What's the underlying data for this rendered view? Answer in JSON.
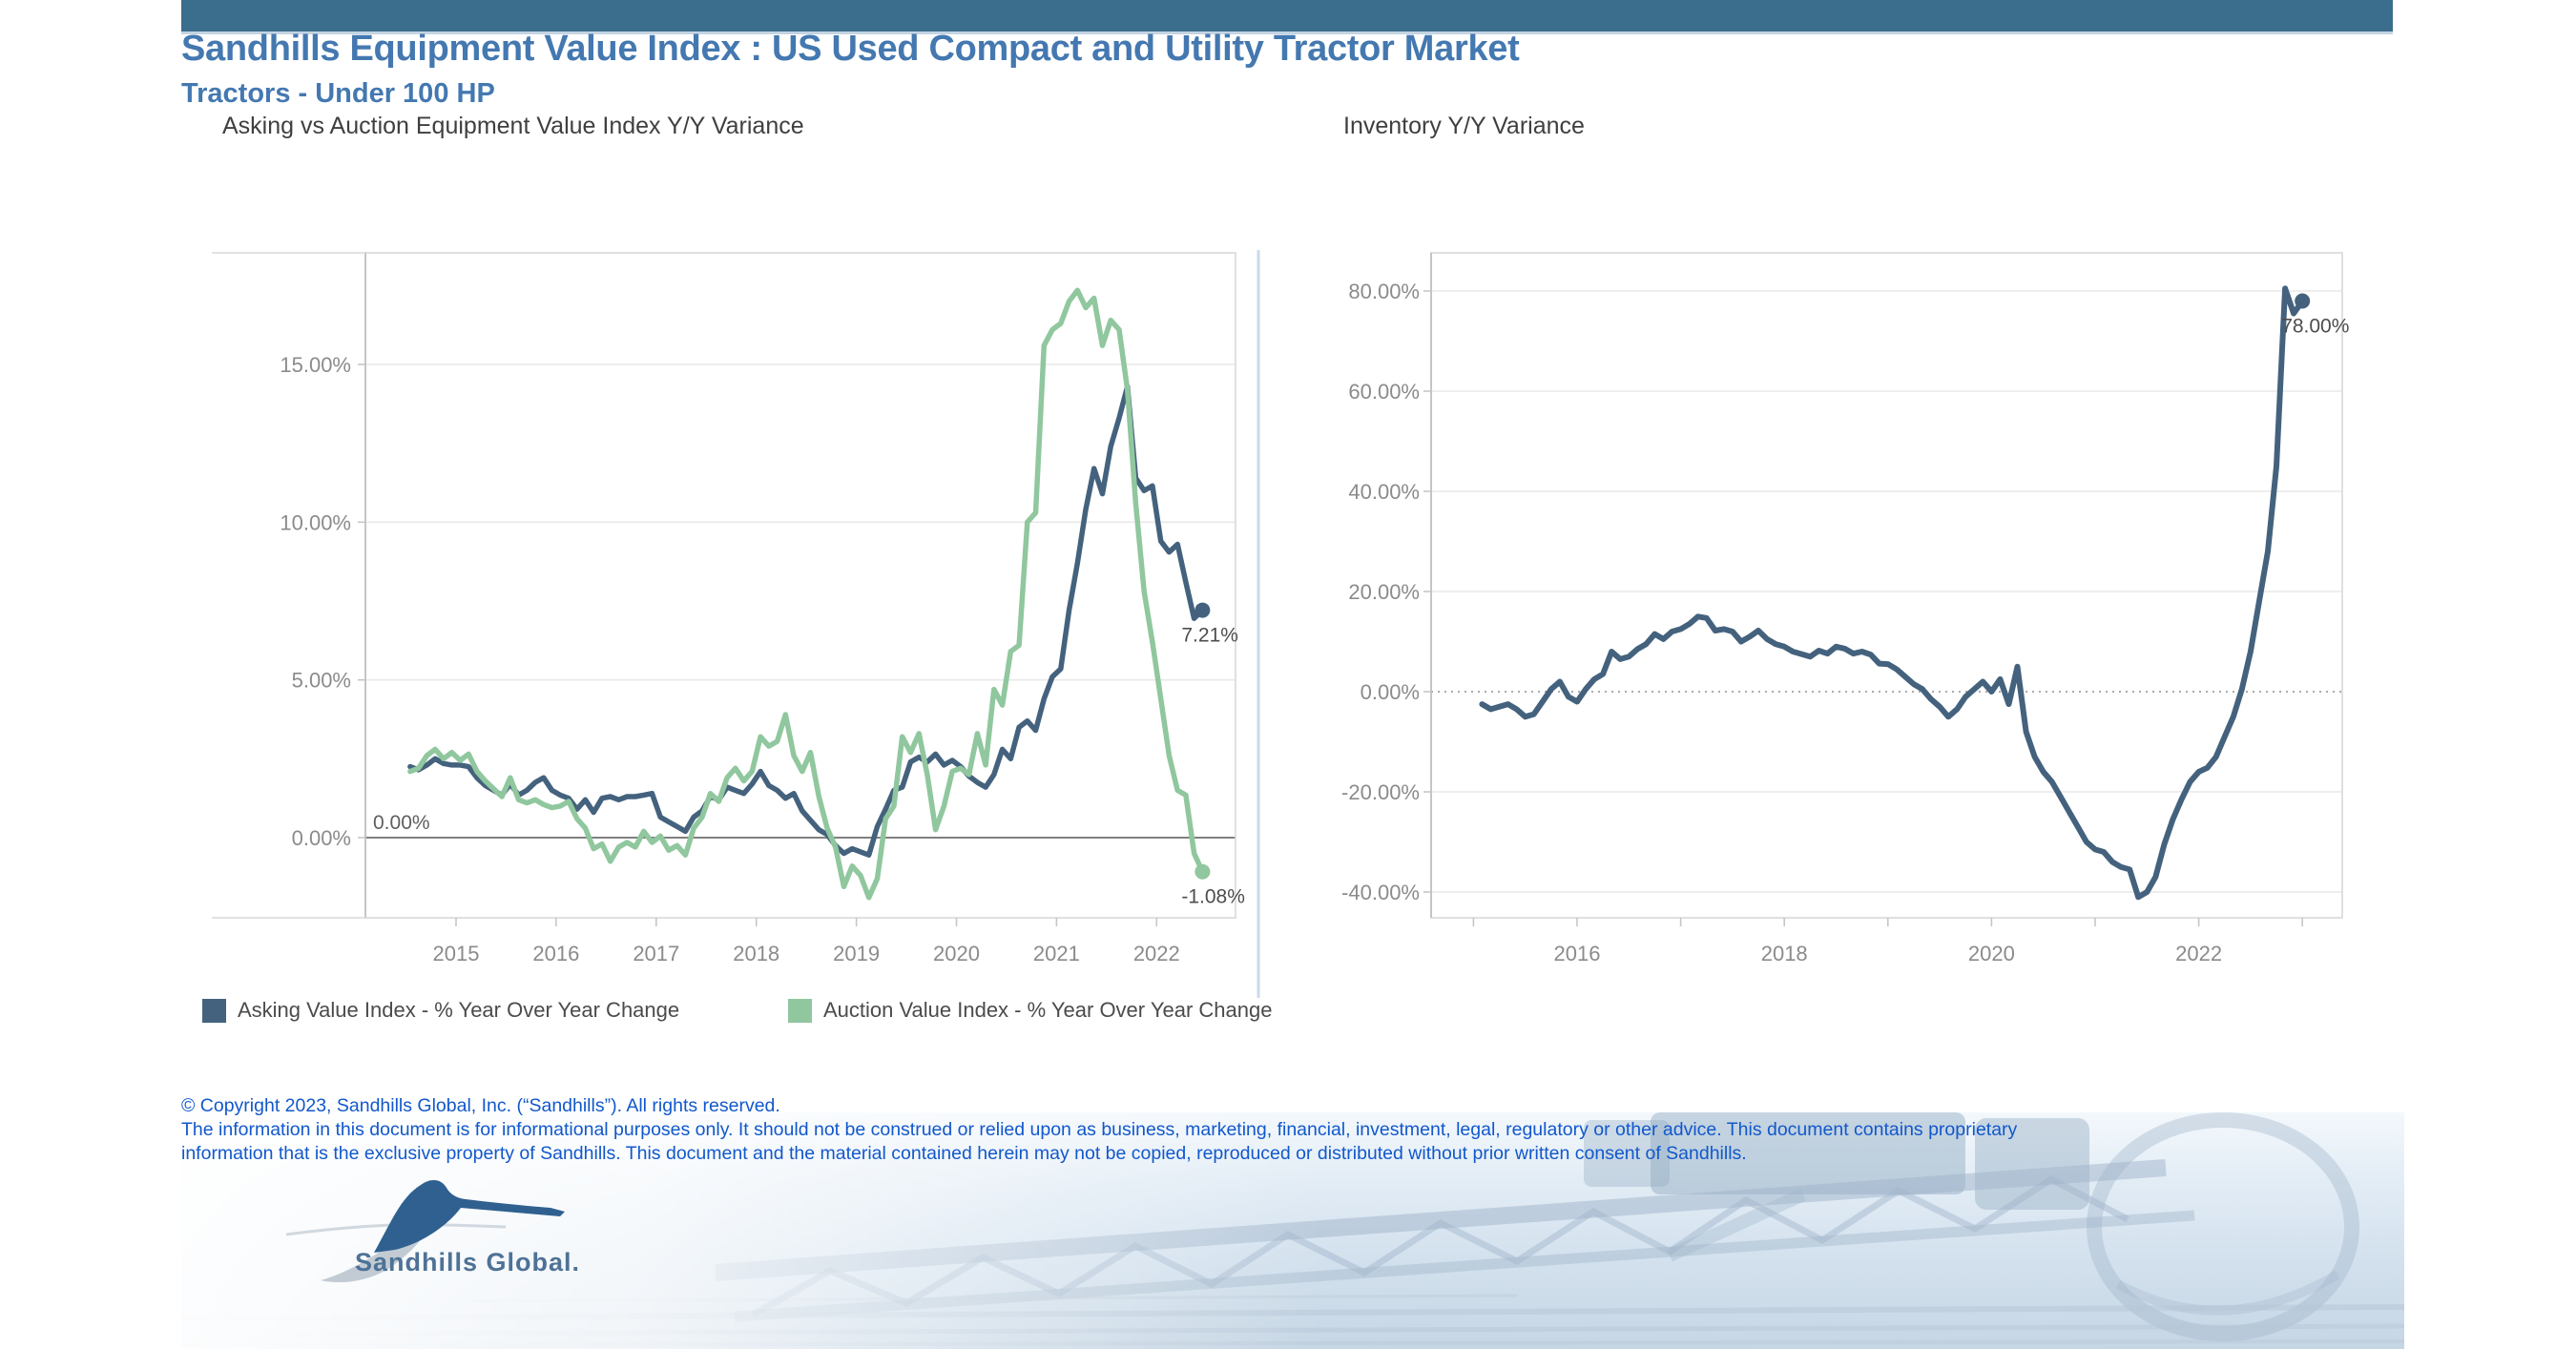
{
  "header": {
    "title": "Sandhills Equipment Value Index : US Used Compact and Utility Tractor Market",
    "subtitle": "Tractors - Under 100 HP"
  },
  "chart_data": [
    {
      "type": "line",
      "title": "Asking vs Auction Equipment Value Index Y/Y Variance",
      "x_start_year": 2014.5417,
      "x_step_years": 0.0833333,
      "x_ticks": [
        {
          "year": 2015,
          "label": "2015"
        },
        {
          "year": 2016,
          "label": "2016"
        },
        {
          "year": 2017,
          "label": "2017"
        },
        {
          "year": 2018,
          "label": "2018"
        },
        {
          "year": 2019,
          "label": "2019"
        },
        {
          "year": 2020,
          "label": "2020"
        },
        {
          "year": 2021,
          "label": "2021"
        },
        {
          "year": 2022,
          "label": "2022"
        }
      ],
      "y_ticks": [
        {
          "value": 15,
          "label": "15.00%"
        },
        {
          "value": 10,
          "label": "10.00%"
        },
        {
          "value": 5,
          "label": "5.00%"
        },
        {
          "value": 0,
          "label": "0.00%"
        }
      ],
      "ylim": [
        -2.6,
        18.5
      ],
      "grid": "horizontal-only",
      "zero_reference_line": {
        "value": 0,
        "style": "solid",
        "label": "0.00%"
      },
      "legend_position": "bottom-left",
      "series": [
        {
          "name": "Asking Value Index - % Year Over Year Change",
          "color": "#44627D",
          "end_label": "7.21%",
          "end_dot": true,
          "values": [
            2.25,
            2.15,
            2.3,
            2.5,
            2.35,
            2.3,
            2.3,
            2.25,
            1.9,
            1.65,
            1.5,
            1.35,
            1.7,
            1.35,
            1.5,
            1.75,
            1.9,
            1.5,
            1.35,
            1.25,
            0.9,
            1.2,
            0.8,
            1.25,
            1.3,
            1.2,
            1.3,
            1.3,
            1.35,
            1.4,
            0.65,
            0.5,
            0.35,
            0.2,
            0.65,
            0.85,
            1.3,
            1.2,
            1.6,
            1.5,
            1.4,
            1.7,
            2.1,
            1.65,
            1.5,
            1.25,
            1.4,
            0.85,
            0.55,
            0.25,
            0.1,
            -0.25,
            -0.5,
            -0.35,
            -0.45,
            -0.55,
            0.35,
            0.9,
            1.5,
            1.6,
            2.4,
            2.55,
            2.4,
            2.65,
            2.3,
            2.45,
            2.25,
            1.95,
            1.75,
            1.6,
            2.0,
            2.8,
            2.5,
            3.5,
            3.7,
            3.4,
            4.4,
            5.1,
            5.35,
            7.2,
            8.7,
            10.4,
            11.7,
            10.9,
            12.4,
            13.3,
            14.3,
            11.4,
            11.0,
            11.15,
            9.4,
            9.05,
            9.3,
            8.1,
            6.95,
            7.21
          ]
        },
        {
          "name": "Auction Value Index - % Year Over Year Change",
          "color": "#90C79E",
          "end_label": "-1.08%",
          "end_dot": true,
          "values": [
            2.1,
            2.2,
            2.6,
            2.8,
            2.5,
            2.7,
            2.45,
            2.65,
            2.1,
            1.8,
            1.55,
            1.3,
            1.9,
            1.2,
            1.1,
            1.2,
            1.05,
            0.95,
            1.0,
            1.15,
            0.6,
            0.3,
            -0.35,
            -0.2,
            -0.75,
            -0.3,
            -0.15,
            -0.3,
            0.2,
            -0.15,
            0.05,
            -0.4,
            -0.25,
            -0.55,
            0.3,
            0.65,
            1.4,
            1.15,
            1.9,
            2.2,
            1.8,
            2.1,
            3.2,
            2.9,
            3.05,
            3.9,
            2.6,
            2.1,
            2.7,
            1.3,
            0.3,
            -0.3,
            -1.55,
            -0.9,
            -1.2,
            -1.9,
            -1.3,
            0.6,
            1.0,
            3.2,
            2.7,
            3.3,
            2.0,
            0.25,
            1.0,
            2.1,
            2.2,
            2.0,
            3.3,
            2.3,
            4.7,
            4.2,
            5.9,
            6.1,
            10.0,
            10.3,
            15.6,
            16.1,
            16.3,
            17.0,
            17.35,
            16.8,
            17.1,
            15.6,
            16.4,
            16.1,
            14.2,
            10.6,
            7.8,
            6.2,
            4.4,
            2.6,
            1.5,
            1.35,
            -0.5,
            -1.08
          ]
        }
      ]
    },
    {
      "type": "line",
      "title": "Inventory Y/Y Variance",
      "x_start_year": 2015.0833,
      "x_step_years": 0.0833333,
      "x_ticks": [
        {
          "year": 2015
        },
        {
          "year": 2016,
          "label": "2016"
        },
        {
          "year": 2017
        },
        {
          "year": 2018,
          "label": "2018"
        },
        {
          "year": 2019
        },
        {
          "year": 2020,
          "label": "2020"
        },
        {
          "year": 2021
        },
        {
          "year": 2022,
          "label": "2022"
        },
        {
          "year": 2023
        }
      ],
      "y_ticks": [
        {
          "value": 80,
          "label": "80.00%"
        },
        {
          "value": 60,
          "label": "60.00%"
        },
        {
          "value": 40,
          "label": "40.00%"
        },
        {
          "value": 20,
          "label": "20.00%"
        },
        {
          "value": 0,
          "label": "0.00%"
        },
        {
          "value": -20,
          "label": "-20.00%"
        },
        {
          "value": -40,
          "label": "-40.00%"
        }
      ],
      "ylim": [
        -45.7,
        87.6
      ],
      "grid": "horizontal-only",
      "zero_reference_line": {
        "value": 0,
        "style": "dotted"
      },
      "series": [
        {
          "name": "Inventory Y/Y Variance",
          "color": "#44627D",
          "end_label": "78.00%",
          "end_dot": true,
          "values": [
            -2.5,
            -3.5,
            -3.0,
            -2.5,
            -3.5,
            -5.0,
            -4.5,
            -2.0,
            0.5,
            2.0,
            -1.0,
            -2.0,
            0.5,
            2.5,
            3.5,
            8.0,
            6.5,
            7.0,
            8.5,
            9.5,
            11.5,
            10.5,
            12.0,
            12.5,
            13.5,
            15.0,
            14.7,
            12.2,
            12.5,
            12.0,
            10.0,
            11.0,
            12.2,
            10.5,
            9.5,
            9.0,
            8.0,
            7.5,
            7.0,
            8.2,
            7.6,
            9.0,
            8.6,
            7.6,
            8.0,
            7.4,
            5.6,
            5.5,
            4.5,
            3.0,
            1.5,
            0.5,
            -1.5,
            -3.0,
            -5.0,
            -3.5,
            -1.0,
            0.5,
            2.0,
            0.0,
            2.5,
            -2.5,
            5.0,
            -8.0,
            -13.0,
            -16.0,
            -18.0,
            -21.0,
            -24.0,
            -27.0,
            -30.0,
            -31.5,
            -32.0,
            -34.0,
            -35.0,
            -35.5,
            -41.0,
            -40.0,
            -37.0,
            -30.5,
            -25.5,
            -21.5,
            -18.0,
            -16.0,
            -15.2,
            -13.0,
            -9.0,
            -5.0,
            0.5,
            8.0,
            18.0,
            28.0,
            45.0,
            80.5,
            75.5,
            78.0
          ]
        }
      ]
    }
  ],
  "legend": {
    "items": [
      {
        "label": "Asking Value Index - % Year Over Year Change",
        "color": "#44627D"
      },
      {
        "label": "Auction Value Index - % Year Over Year Change",
        "color": "#90C79E"
      }
    ]
  },
  "footer": {
    "copyright": "© Copyright 2023, Sandhills Global, Inc. (“Sandhills”). All rights reserved.",
    "disclaimer_line1": "The information in this document is for informational purposes only.  It should not be construed or relied upon as business, marketing, financial, investment, legal, regulatory or other advice. This document contains proprietary",
    "disclaimer_line2": "information that is the exclusive property of Sandhills. This document and the material contained herein may not be copied, reproduced or distributed without prior written consent of Sandhills.",
    "logo_text": "Sandhills Global."
  },
  "colors": {
    "topbar": "#3B6D8C",
    "title_text": "#4478B0",
    "asking_series": "#44627D",
    "auction_series": "#90C79E",
    "footer_text": "#1158CC",
    "gridline": "#E8E8E8",
    "axis_label": "#8B8B8B"
  }
}
